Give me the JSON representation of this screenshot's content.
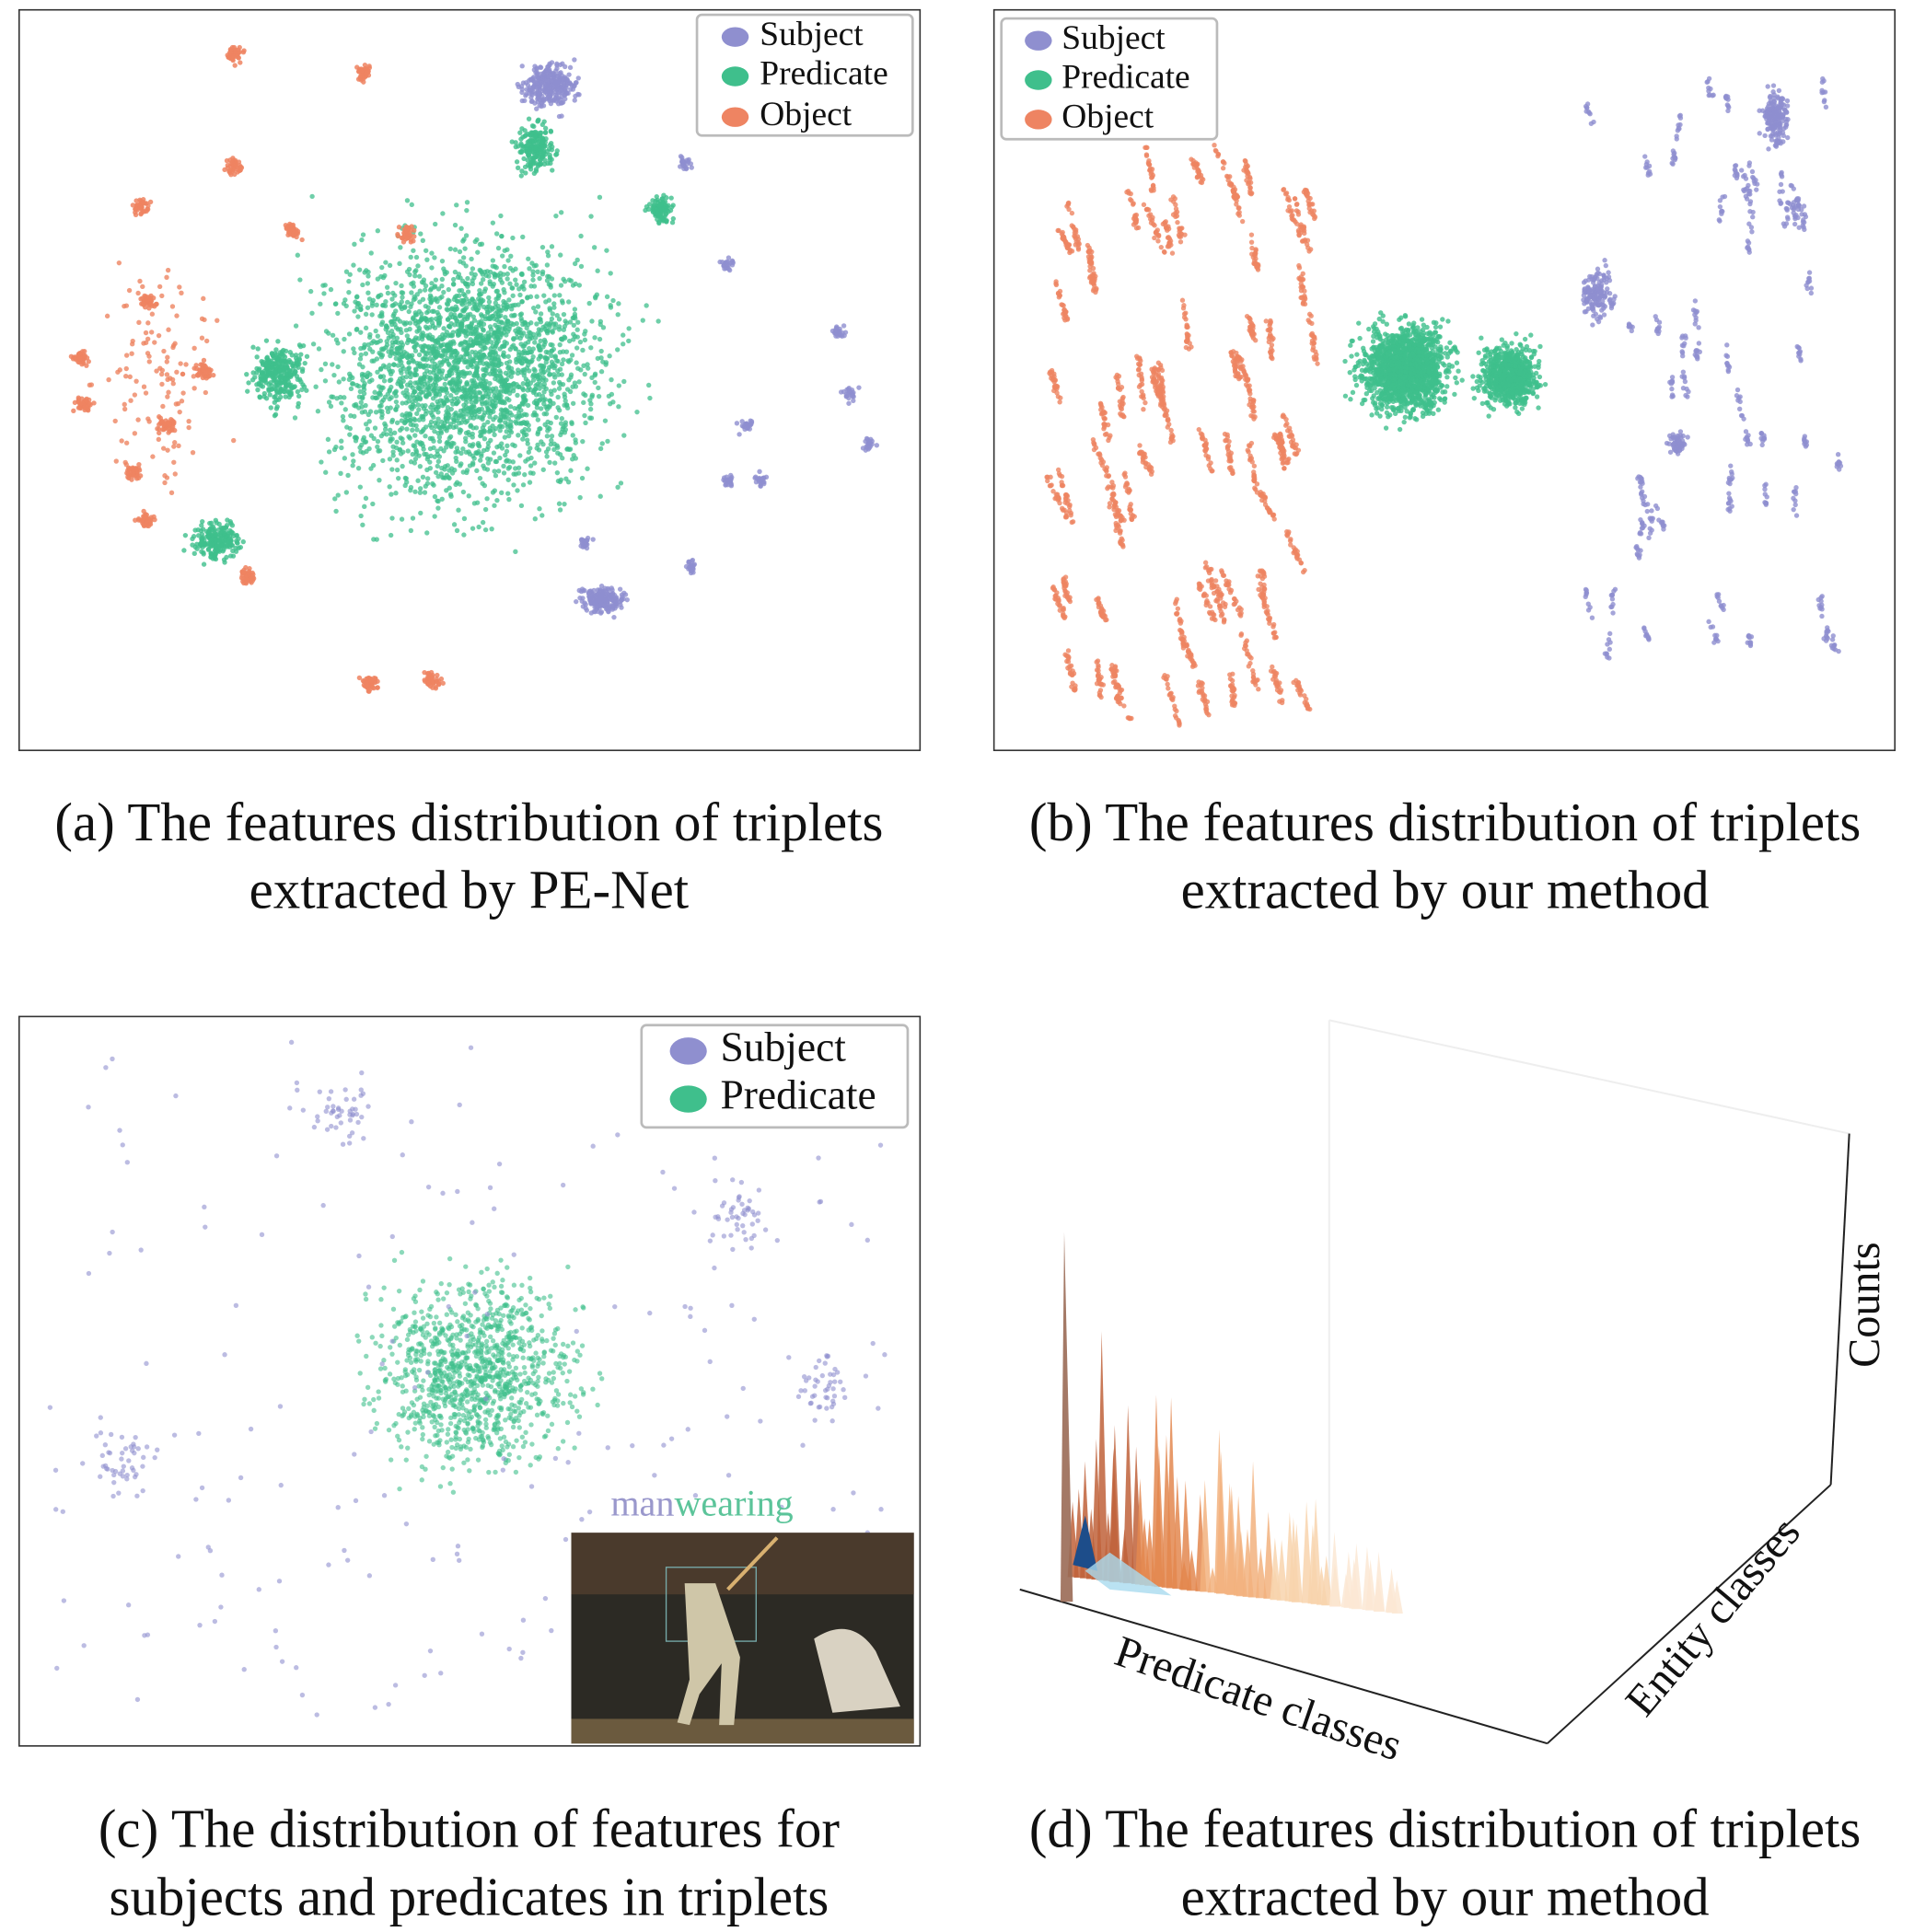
{
  "panels": [
    {
      "caption": [
        "(a) The features distribution of triplets",
        "extracted by PE-Net"
      ],
      "legend": [
        "Subject",
        "Predicate",
        "Object"
      ]
    },
    {
      "caption": [
        "(b) The features distribution of triplets",
        "extracted by our method"
      ],
      "legend": [
        "Subject",
        "Predicate",
        "Object"
      ]
    },
    {
      "caption": [
        "(c) The distribution of features for",
        "subjects and predicates in triplets"
      ],
      "legend": [
        "Subject",
        "Predicate"
      ],
      "inset_label": [
        "man",
        "wearing"
      ]
    },
    {
      "caption": [
        "(d) The features distribution of triplets",
        "extracted by our method"
      ],
      "axis_labels": {
        "x": "Predicate classes",
        "y": "Entity classes",
        "z": "Counts"
      }
    }
  ]
}
